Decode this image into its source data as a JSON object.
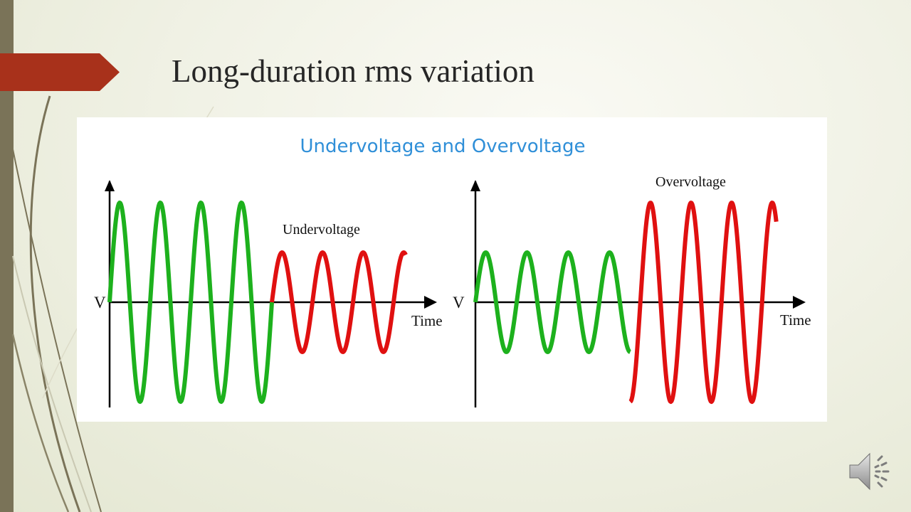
{
  "slide": {
    "title": "Long-duration rms variation",
    "accent_color": "#a8311b",
    "sidebar_color": "#7a7358"
  },
  "figure": {
    "heading": "Undervoltage and Overvoltage",
    "heading_color": "#2f8fd8",
    "normal_color": "#1db11d",
    "event_color": "#e01010",
    "panels": [
      {
        "id": "undervoltage",
        "y_label": "V",
        "x_label": "Time",
        "event_label": "Undervoltage",
        "normal_cycles": 4,
        "normal_amplitude": 1.0,
        "event_cycles": 3.3,
        "event_amplitude": 0.5
      },
      {
        "id": "overvoltage",
        "y_label": "V",
        "x_label": "Time",
        "event_label": "Overvoltage",
        "normal_cycles": 3.75,
        "normal_amplitude": 0.5,
        "event_cycles": 3.6,
        "event_amplitude": 1.0
      }
    ]
  },
  "icons": {
    "speaker": "speaker-icon"
  }
}
